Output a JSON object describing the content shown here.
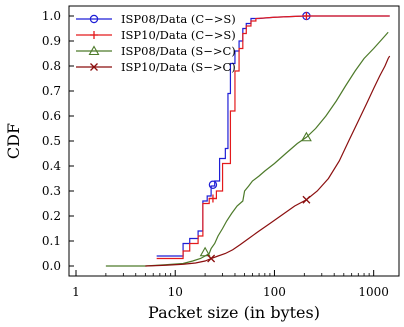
{
  "chart_data": {
    "type": "line",
    "title": "",
    "xlabel": "Packet size (in bytes)",
    "ylabel": "CDF",
    "x_scale": "log",
    "xlim": [
      1,
      1500
    ],
    "ylim": [
      0,
      1.0
    ],
    "x_ticks": [
      1,
      10,
      100,
      1000
    ],
    "x_tick_labels": [
      "1",
      "10",
      "100",
      "1000"
    ],
    "y_ticks": [
      0,
      0.1,
      0.2,
      0.3,
      0.4,
      0.5,
      0.6,
      0.7,
      0.8,
      0.9,
      1.0
    ],
    "y_tick_labels": [
      "0.0",
      "0.1",
      "0.2",
      "0.3",
      "0.4",
      "0.5",
      "0.6",
      "0.7",
      "0.8",
      "0.9",
      "1.0"
    ],
    "grid": false,
    "legend_position": "top-left",
    "series": [
      {
        "name": "ISP08/Data (C−>S)",
        "color": "#1f1fd6",
        "marker": "circle",
        "marker_points": [
          [
            24,
            0.325
          ],
          [
            210,
            1.0
          ]
        ],
        "points": [
          [
            6.5,
            0.04
          ],
          [
            12,
            0.04
          ],
          [
            12,
            0.09
          ],
          [
            14,
            0.09
          ],
          [
            14,
            0.11
          ],
          [
            17,
            0.11
          ],
          [
            17,
            0.14
          ],
          [
            19,
            0.14
          ],
          [
            19,
            0.26
          ],
          [
            21,
            0.26
          ],
          [
            21,
            0.28
          ],
          [
            23,
            0.28
          ],
          [
            23,
            0.32
          ],
          [
            25,
            0.32
          ],
          [
            25,
            0.34
          ],
          [
            28,
            0.34
          ],
          [
            28,
            0.43
          ],
          [
            32,
            0.43
          ],
          [
            32,
            0.47
          ],
          [
            34,
            0.47
          ],
          [
            34,
            0.69
          ],
          [
            36,
            0.69
          ],
          [
            36,
            0.81
          ],
          [
            40,
            0.81
          ],
          [
            40,
            0.86
          ],
          [
            44,
            0.86
          ],
          [
            44,
            0.9
          ],
          [
            48,
            0.9
          ],
          [
            48,
            0.95
          ],
          [
            52,
            0.95
          ],
          [
            52,
            0.97
          ],
          [
            58,
            0.97
          ],
          [
            58,
            0.99
          ],
          [
            70,
            0.99
          ],
          [
            100,
            0.995
          ],
          [
            200,
            1.0
          ],
          [
            500,
            1.0
          ],
          [
            1000,
            1.0
          ],
          [
            1450,
            1.0
          ]
        ]
      },
      {
        "name": "ISP10/Data (C−>S)",
        "color": "#e31a1c",
        "marker": "plus",
        "marker_points": [
          [
            24,
            0.27
          ],
          [
            210,
            1.0
          ]
        ],
        "points": [
          [
            6.5,
            0.03
          ],
          [
            12,
            0.03
          ],
          [
            12,
            0.06
          ],
          [
            14,
            0.06
          ],
          [
            14,
            0.09
          ],
          [
            17,
            0.09
          ],
          [
            17,
            0.12
          ],
          [
            19,
            0.12
          ],
          [
            19,
            0.25
          ],
          [
            22,
            0.25
          ],
          [
            22,
            0.27
          ],
          [
            26,
            0.27
          ],
          [
            26,
            0.3
          ],
          [
            30,
            0.3
          ],
          [
            30,
            0.41
          ],
          [
            36,
            0.41
          ],
          [
            36,
            0.62
          ],
          [
            40,
            0.62
          ],
          [
            40,
            0.78
          ],
          [
            44,
            0.78
          ],
          [
            44,
            0.87
          ],
          [
            48,
            0.87
          ],
          [
            48,
            0.93
          ],
          [
            52,
            0.93
          ],
          [
            52,
            0.96
          ],
          [
            58,
            0.96
          ],
          [
            58,
            0.98
          ],
          [
            65,
            0.98
          ],
          [
            65,
            0.99
          ],
          [
            100,
            0.995
          ],
          [
            200,
            1.0
          ],
          [
            500,
            1.0
          ],
          [
            1000,
            1.0
          ],
          [
            1450,
            1.0
          ]
        ]
      },
      {
        "name": "ISP08/Data (S−>C)",
        "color": "#4d7a2a",
        "marker": "triangle",
        "marker_points": [
          [
            20,
            0.055
          ],
          [
            210,
            0.515
          ]
        ],
        "points": [
          [
            2,
            0.0
          ],
          [
            5,
            0.0
          ],
          [
            8,
            0.005
          ],
          [
            12,
            0.01
          ],
          [
            15,
            0.02
          ],
          [
            18,
            0.03
          ],
          [
            20,
            0.04
          ],
          [
            22,
            0.05
          ],
          [
            23,
            0.07
          ],
          [
            25,
            0.09
          ],
          [
            27,
            0.12
          ],
          [
            30,
            0.15
          ],
          [
            33,
            0.18
          ],
          [
            37,
            0.21
          ],
          [
            42,
            0.24
          ],
          [
            48,
            0.26
          ],
          [
            50,
            0.3
          ],
          [
            55,
            0.32
          ],
          [
            60,
            0.34
          ],
          [
            70,
            0.36
          ],
          [
            80,
            0.38
          ],
          [
            100,
            0.41
          ],
          [
            130,
            0.45
          ],
          [
            170,
            0.49
          ],
          [
            210,
            0.515
          ],
          [
            260,
            0.55
          ],
          [
            330,
            0.6
          ],
          [
            420,
            0.66
          ],
          [
            520,
            0.72
          ],
          [
            650,
            0.78
          ],
          [
            800,
            0.83
          ],
          [
            1000,
            0.87
          ],
          [
            1200,
            0.905
          ],
          [
            1400,
            0.935
          ]
        ]
      },
      {
        "name": "ISP10/Data (S−>C)",
        "color": "#8b0f0f",
        "marker": "cross",
        "marker_points": [
          [
            23,
            0.03
          ],
          [
            210,
            0.265
          ]
        ],
        "points": [
          [
            5,
            0.0
          ],
          [
            8,
            0.003
          ],
          [
            12,
            0.007
          ],
          [
            16,
            0.012
          ],
          [
            20,
            0.02
          ],
          [
            23,
            0.03
          ],
          [
            27,
            0.04
          ],
          [
            32,
            0.05
          ],
          [
            38,
            0.065
          ],
          [
            45,
            0.085
          ],
          [
            55,
            0.11
          ],
          [
            70,
            0.14
          ],
          [
            90,
            0.17
          ],
          [
            120,
            0.205
          ],
          [
            160,
            0.24
          ],
          [
            210,
            0.265
          ],
          [
            270,
            0.3
          ],
          [
            350,
            0.35
          ],
          [
            450,
            0.42
          ],
          [
            560,
            0.5
          ],
          [
            700,
            0.58
          ],
          [
            850,
            0.65
          ],
          [
            1000,
            0.71
          ],
          [
            1150,
            0.76
          ],
          [
            1300,
            0.8
          ],
          [
            1400,
            0.83
          ],
          [
            1450,
            0.84
          ]
        ]
      }
    ]
  }
}
